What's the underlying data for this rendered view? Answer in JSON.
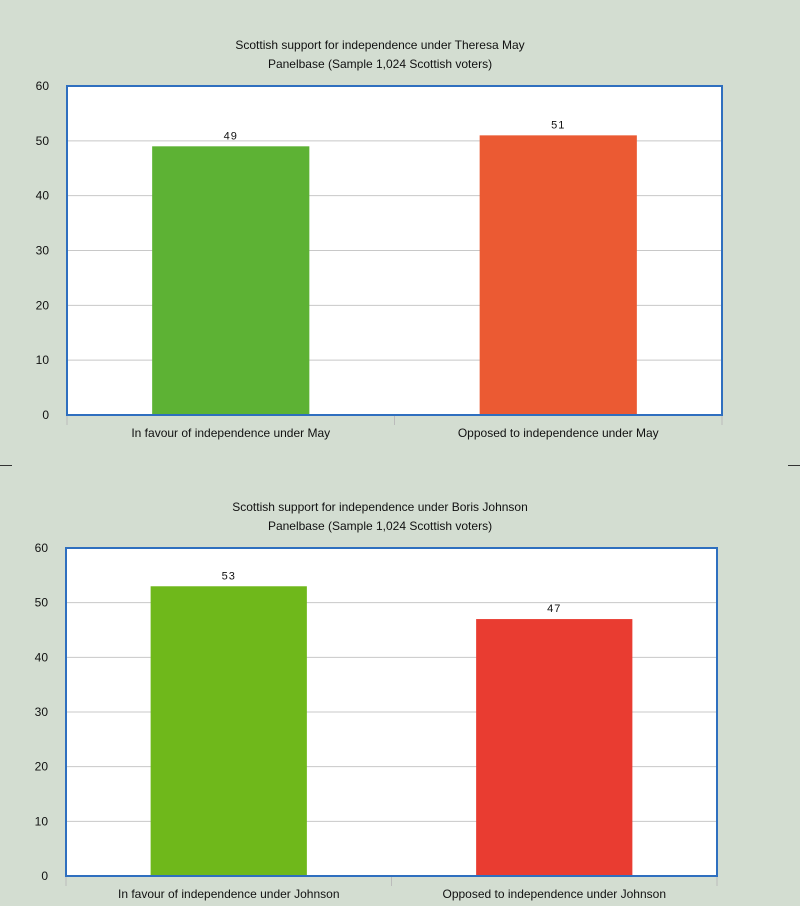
{
  "chart_data": [
    {
      "type": "bar",
      "title": "Scottish support for independence under Theresa May",
      "subtitle": "Panelbase (Sample 1,024 Scottish voters)",
      "categories": [
        "In favour of independence under May",
        "Opposed to independence under May"
      ],
      "values": [
        49,
        51
      ],
      "data_labels": [
        "49",
        "51"
      ],
      "colors": [
        "#5db234",
        "#eb5a33"
      ],
      "ylim": [
        0,
        60
      ],
      "yticks": [
        "0",
        "10",
        "20",
        "30",
        "40",
        "50",
        "60"
      ],
      "grid": true,
      "legend": "none"
    },
    {
      "type": "bar",
      "title": "Scottish support for independence under Boris Johnson",
      "subtitle": "Panelbase (Sample 1,024 Scottish voters)",
      "categories": [
        "In favour of independence under Johnson",
        "Opposed to independence under Johnson"
      ],
      "values": [
        53,
        47
      ],
      "data_labels": [
        "53",
        "47"
      ],
      "colors": [
        "#6fb81b",
        "#e93c31"
      ],
      "ylim": [
        0,
        60
      ],
      "yticks": [
        "0",
        "10",
        "20",
        "30",
        "40",
        "50",
        "60"
      ],
      "grid": true,
      "legend": "none"
    }
  ],
  "theme": {
    "background": "#d3ddd1",
    "plot_background": "#ffffff",
    "plot_border": "#2f6fbf",
    "gridline": "#c8c8c8"
  }
}
